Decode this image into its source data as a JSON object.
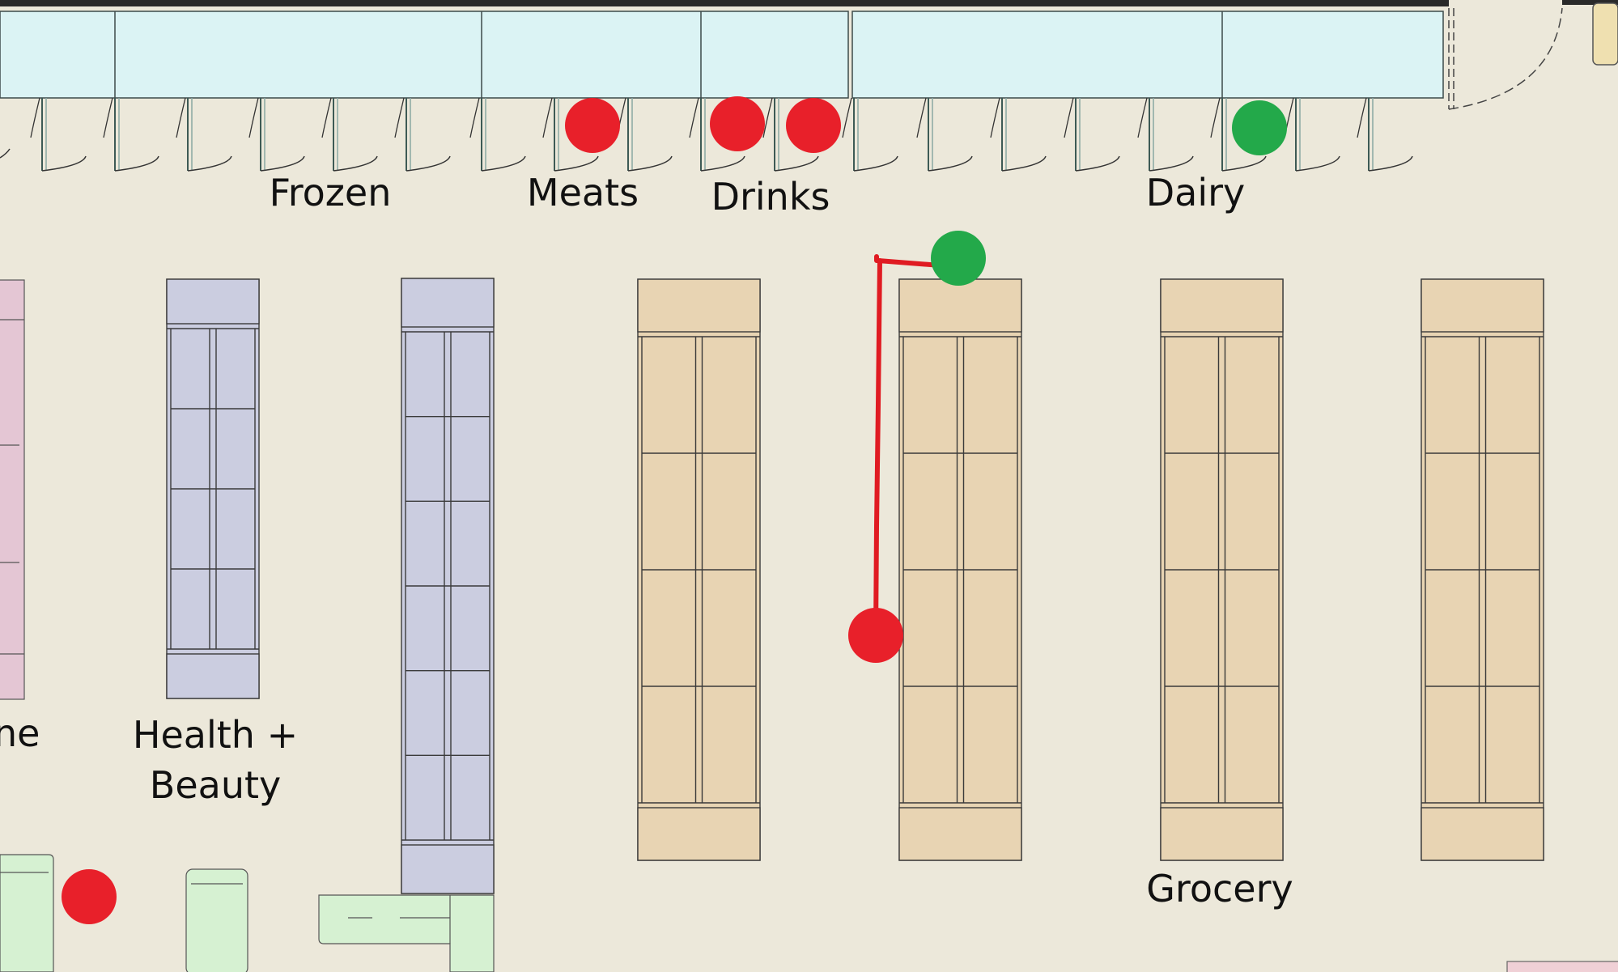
{
  "section_labels": {
    "frozen": "Frozen",
    "meats": "Meats",
    "drinks": "Drinks",
    "dairy": "Dairy",
    "health_line1": "Health +",
    "health_line2": "Beauty",
    "grocery": "Grocery",
    "partial_left": "ne"
  },
  "markers": {
    "red_color": "#e8202a",
    "green_color": "#23a94a",
    "path_color": "#e01b22"
  },
  "colors": {
    "floor": "#ece8da",
    "freezer": "#dbf3f4",
    "health_shelf": "#cbcde0",
    "grocery_shelf": "#e8d4b3",
    "pink_shelf": "#e4c6d4",
    "green_fixture": "#d6f1d2"
  }
}
